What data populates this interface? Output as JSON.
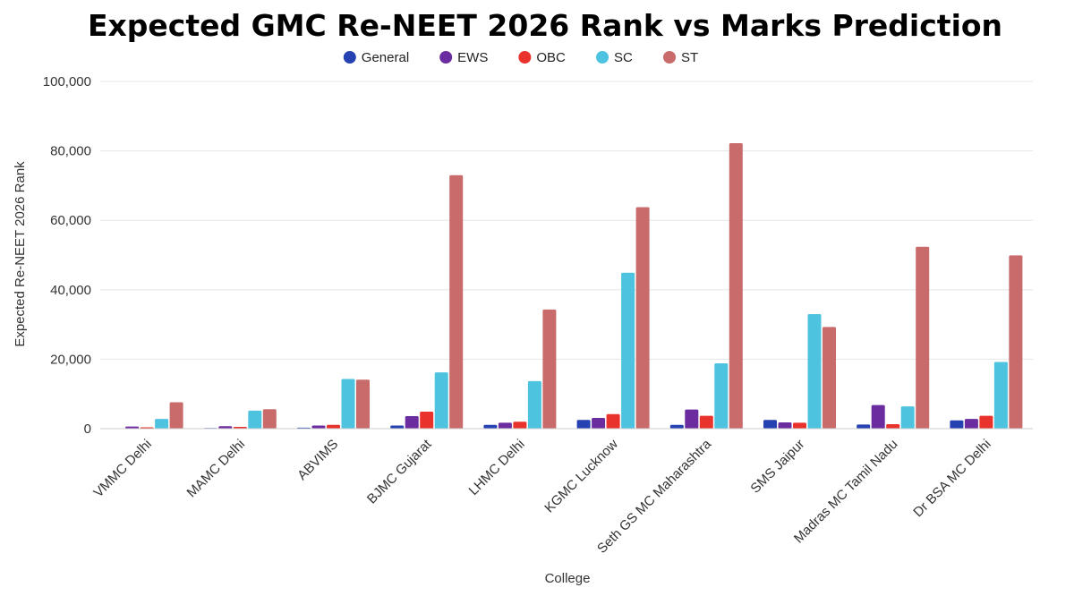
{
  "chart_data": {
    "type": "bar",
    "title": "Expected GMC Re-NEET 2026 Rank vs Marks Prediction",
    "xlabel": "College",
    "ylabel": "Expected Re-NEET 2026 Rank",
    "ylim": [
      0,
      100000
    ],
    "yticks": [
      0,
      20000,
      40000,
      60000,
      80000,
      100000
    ],
    "ytick_labels": [
      "0",
      "20,000",
      "40,000",
      "60,000",
      "80,000",
      "100,000"
    ],
    "grid": true,
    "legend_position": "top-center",
    "categories": [
      "VMMC Delhi",
      "MAMC Delhi",
      "ABVIMS",
      "BJMC Gujarat",
      "LHMC Delhi",
      "KGMC Lucknow",
      "Seth GS MC Maharashtra",
      "SMS Jaipur",
      "Madras MC Tamil Nadu",
      "Dr BSA MC Delhi"
    ],
    "series": [
      {
        "name": "General",
        "color": "#2541b2",
        "values": [
          100,
          200,
          300,
          900,
          1100,
          2500,
          1100,
          2500,
          1200,
          2400
        ]
      },
      {
        "name": "EWS",
        "color": "#6a2c9e",
        "values": [
          600,
          700,
          900,
          3600,
          1700,
          3100,
          5500,
          1800,
          6800,
          2800
        ]
      },
      {
        "name": "OBC",
        "color": "#e8322b",
        "values": [
          400,
          500,
          1100,
          4900,
          2000,
          4200,
          3700,
          1700,
          1300,
          3700
        ]
      },
      {
        "name": "SC",
        "color": "#4dc3e0",
        "values": [
          2800,
          5200,
          14300,
          16200,
          13700,
          44900,
          18800,
          33000,
          6400,
          19200
        ]
      },
      {
        "name": "ST",
        "color": "#c96b6b",
        "values": [
          7600,
          5600,
          14100,
          73000,
          34300,
          63800,
          82200,
          29300,
          52400,
          49900
        ]
      }
    ]
  }
}
